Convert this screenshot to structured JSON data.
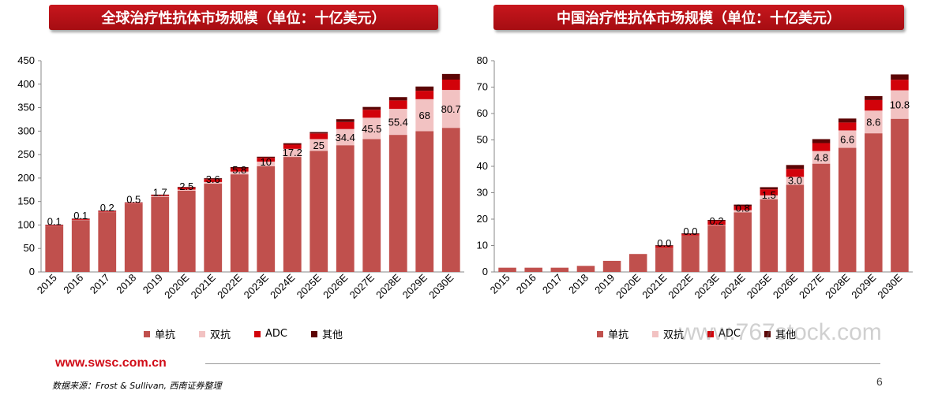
{
  "header": {
    "left_title": "全球治疗性抗体市场规模（单位：十亿美元）",
    "right_title": "中国治疗性抗体市场规模（单位：十亿美元）"
  },
  "footer": {
    "website": "www.swsc.com.cn",
    "source": "数据来源：Frost & Sullivan, 西南证券整理",
    "page_number": "6",
    "watermark": "www.767stock.com"
  },
  "colors": {
    "单抗": "#c0504d",
    "双抗": "#f2c2c2",
    "ADC": "#d2020a",
    "其他": "#5c0505",
    "banner": "#b51217"
  },
  "chart_data": [
    {
      "type": "bar",
      "stacked": true,
      "title": "全球治疗性抗体市场规模（单位：十亿美元）",
      "categories": [
        "2015",
        "2016",
        "2017",
        "2018",
        "2019",
        "2020E",
        "2021E",
        "2022E",
        "2023E",
        "2024E",
        "2025E",
        "2026E",
        "2027E",
        "2028E",
        "2029E",
        "2030E"
      ],
      "ylim": [
        0,
        450
      ],
      "yticks": [
        0,
        50,
        100,
        150,
        200,
        250,
        300,
        350,
        400,
        450
      ],
      "legend_position": "bottom",
      "series": [
        {
          "name": "单抗",
          "values": [
            98,
            111,
            128,
            145,
            160,
            173,
            188,
            208,
            225,
            245,
            258,
            270,
            283,
            292,
            300,
            307
          ]
        },
        {
          "name": "双抗",
          "values": [
            0.1,
            0.1,
            0.2,
            0.5,
            1.7,
            2.5,
            3.6,
            5.8,
            10,
            17.2,
            25,
            34.4,
            45.5,
            55.4,
            68,
            80.7
          ]
        },
        {
          "name": "ADC",
          "values": [
            1.5,
            1.5,
            1.5,
            1.5,
            2,
            4,
            6,
            7,
            8,
            9,
            12,
            15,
            17,
            18,
            18,
            22
          ]
        },
        {
          "name": "其他",
          "values": [
            1,
            1,
            1,
            1,
            1,
            1.5,
            2,
            2.5,
            2.5,
            3,
            3,
            6,
            6,
            7,
            9,
            12
          ]
        }
      ],
      "data_labels": [
        "0.1",
        "0.1",
        "0.2",
        "0.5",
        "1.7",
        "2.5",
        "3.6",
        "5.8",
        "10",
        "17.2",
        "25",
        "34.4",
        "45.5",
        "55.4",
        "68",
        "80.7"
      ]
    },
    {
      "type": "bar",
      "stacked": true,
      "title": "中国治疗性抗体市场规模（单位：十亿美元）",
      "categories": [
        "2015",
        "2016",
        "2017",
        "2018",
        "2019",
        "2020E",
        "2021E",
        "2022E",
        "2023E",
        "2024E",
        "2025E",
        "2026E",
        "2027E",
        "2028E",
        "2029E",
        "2030E"
      ],
      "ylim": [
        0,
        80
      ],
      "yticks": [
        0,
        10,
        20,
        30,
        40,
        50,
        60,
        70,
        80
      ],
      "legend_position": "bottom",
      "series": [
        {
          "name": "单抗",
          "values": [
            1.6,
            1.6,
            1.6,
            2.3,
            4.2,
            6.8,
            9.2,
            13.8,
            17.6,
            22.6,
            27.5,
            33,
            41,
            47,
            52.5,
            58
          ]
        },
        {
          "name": "双抗",
          "values": [
            0,
            0,
            0,
            0,
            0,
            0,
            0,
            0,
            0.2,
            0.8,
            1.5,
            3.0,
            4.8,
            6.6,
            8.6,
            10.8
          ]
        },
        {
          "name": "ADC",
          "values": [
            0,
            0,
            0,
            0,
            0,
            0,
            0.6,
            0.5,
            1.5,
            1.5,
            2.3,
            3,
            3,
            3,
            4,
            4
          ]
        },
        {
          "name": "其他",
          "values": [
            0,
            0,
            0,
            0,
            0,
            0,
            0.3,
            0.3,
            0.4,
            0.6,
            0.8,
            1.5,
            1.5,
            1.5,
            1.5,
            2
          ]
        }
      ],
      "data_labels": [
        "",
        "",
        "",
        "",
        "",
        "",
        "0.0",
        "0.0",
        "0.2",
        "0.8",
        "1.5",
        "3.0",
        "4.8",
        "6.6",
        "8.6",
        "10.8"
      ]
    }
  ]
}
